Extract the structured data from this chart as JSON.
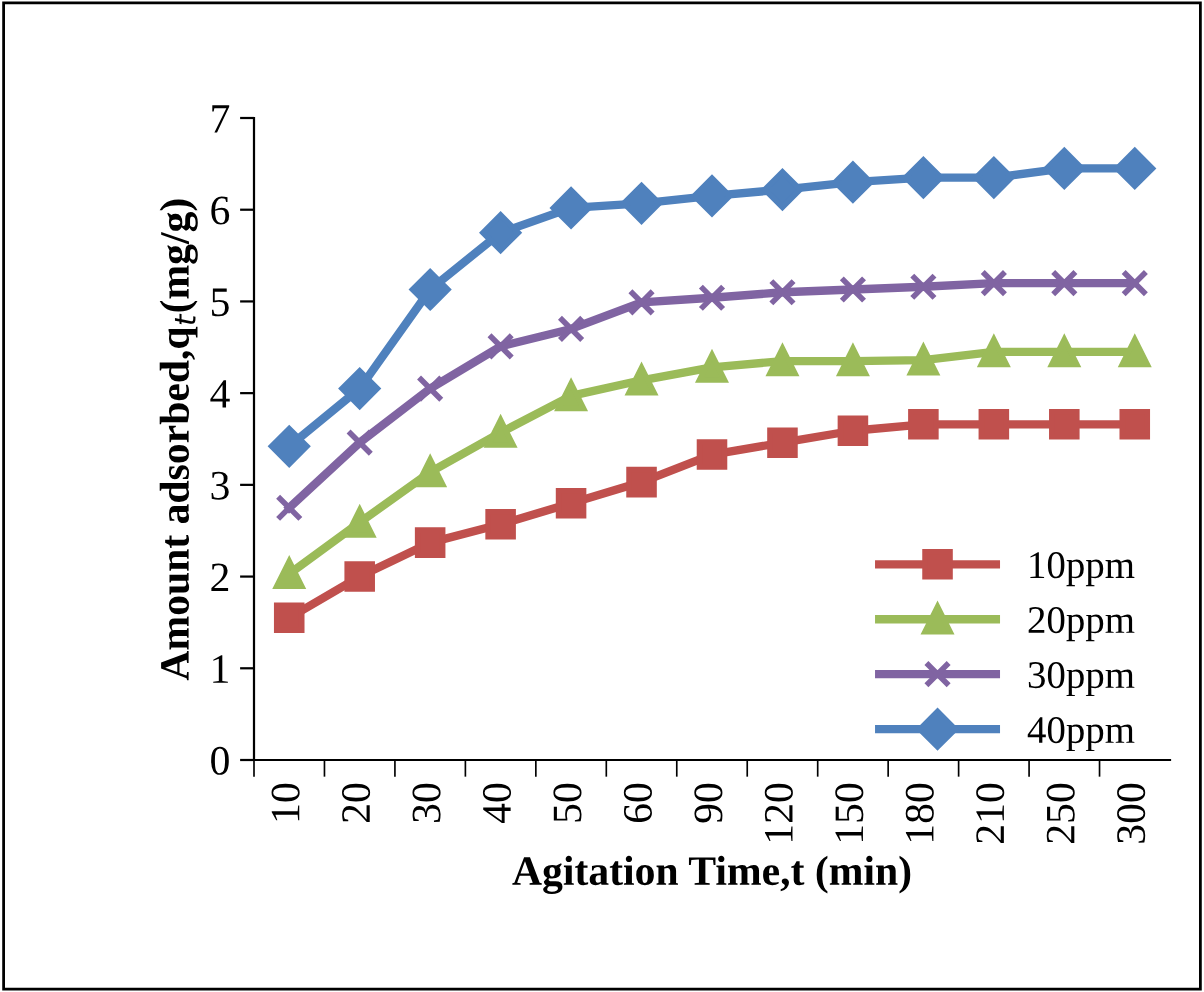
{
  "chart_data": {
    "type": "line",
    "xlabel": "Agitation Time,t (min)",
    "ylabel": "Amount adsorbed,q$_{t}$(mg/g)",
    "categories": [
      "10",
      "20",
      "30",
      "40",
      "50",
      "60",
      "90",
      "120",
      "150",
      "180",
      "210",
      "250",
      "300"
    ],
    "ylim": [
      0,
      7
    ],
    "yticks": [
      0,
      1,
      2,
      3,
      4,
      5,
      6,
      7
    ],
    "grid": false,
    "legend": "right",
    "line_style": "solid",
    "series": [
      {
        "name": "10ppm",
        "color": "#c0504d",
        "marker": "square",
        "values": [
          1.55,
          2.0,
          2.37,
          2.57,
          2.8,
          3.03,
          3.33,
          3.46,
          3.59,
          3.66,
          3.66,
          3.66,
          3.66
        ]
      },
      {
        "name": "20ppm",
        "color": "#9bbb59",
        "marker": "triangle",
        "values": [
          2.03,
          2.59,
          3.14,
          3.57,
          3.97,
          4.14,
          4.28,
          4.35,
          4.35,
          4.36,
          4.45,
          4.45,
          4.45
        ]
      },
      {
        "name": "30ppm",
        "color": "#8064a2",
        "marker": "cross",
        "values": [
          2.75,
          3.46,
          4.05,
          4.51,
          4.7,
          4.99,
          5.04,
          5.1,
          5.13,
          5.16,
          5.2,
          5.2,
          5.2
        ]
      },
      {
        "name": "40ppm",
        "color": "#4f81bd",
        "marker": "diamond",
        "values": [
          3.42,
          4.05,
          5.13,
          5.75,
          6.02,
          6.07,
          6.15,
          6.22,
          6.3,
          6.35,
          6.35,
          6.45,
          6.45
        ]
      }
    ]
  }
}
